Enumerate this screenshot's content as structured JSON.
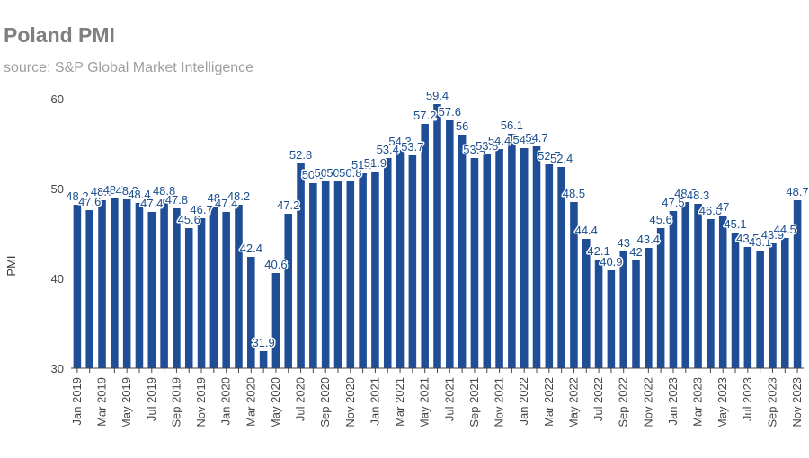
{
  "chart_data": {
    "type": "bar",
    "title": "Poland PMI",
    "subtitle": "source: S&P Global Market Intelligence",
    "ylabel": "PMI",
    "xlabel": "",
    "ylim": [
      30,
      60
    ],
    "yticks": [
      30,
      40,
      50,
      60
    ],
    "grid": false,
    "legend": "none",
    "bar_color": "#1f4e96",
    "label_color": "#1a4e8f",
    "categories": [
      "Jan 2019",
      "Feb 2019",
      "Mar 2019",
      "Apr 2019",
      "May 2019",
      "Jun 2019",
      "Jul 2019",
      "Aug 2019",
      "Sep 2019",
      "Oct 2019",
      "Nov 2019",
      "Dec 2019",
      "Jan 2020",
      "Feb 2020",
      "Mar 2020",
      "Apr 2020",
      "May 2020",
      "Jun 2020",
      "Jul 2020",
      "Aug 2020",
      "Sep 2020",
      "Oct 2020",
      "Nov 2020",
      "Dec 2020",
      "Jan 2021",
      "Feb 2021",
      "Mar 2021",
      "Apr 2021",
      "May 2021",
      "Jun 2021",
      "Jul 2021",
      "Aug 2021",
      "Sep 2021",
      "Oct 2021",
      "Nov 2021",
      "Dec 2021",
      "Jan 2022",
      "Feb 2022",
      "Mar 2022",
      "Apr 2022",
      "May 2022",
      "Jun 2022",
      "Jul 2022",
      "Aug 2022",
      "Sep 2022",
      "Oct 2022",
      "Nov 2022",
      "Dec 2022",
      "Jan 2023",
      "Feb 2023",
      "Mar 2023",
      "Apr 2023",
      "May 2023",
      "Jun 2023",
      "Jul 2023",
      "Aug 2023",
      "Sep 2023",
      "Oct 2023",
      "Nov 2023"
    ],
    "xtick_labels": [
      "Jan 2019",
      "Mar 2019",
      "May 2019",
      "Jul 2019",
      "Sep 2019",
      "Nov 2019",
      "Jan 2020",
      "Mar 2020",
      "May 2020",
      "Jul 2020",
      "Sep 2020",
      "Nov 2020",
      "Jan 2021",
      "Mar 2021",
      "May 2021",
      "Jul 2021",
      "Sep 2021",
      "Nov 2021",
      "Jan 2022",
      "Mar 2022",
      "May 2022",
      "Jul 2022",
      "Sep 2022",
      "Nov 2022",
      "Jan 2023",
      "Mar 2023",
      "May 2023",
      "Jul 2023",
      "Sep 2023",
      "Nov 2023"
    ],
    "values": [
      48.2,
      47.6,
      48.7,
      48.9,
      48.8,
      48.4,
      47.4,
      48.8,
      47.8,
      45.6,
      46.7,
      48.0,
      47.4,
      48.2,
      42.4,
      31.9,
      40.6,
      47.2,
      52.8,
      50.6,
      50.8,
      50.8,
      50.8,
      51.7,
      51.9,
      53.4,
      54.3,
      53.7,
      57.2,
      59.4,
      57.6,
      56.0,
      53.4,
      53.8,
      54.4,
      56.1,
      54.5,
      54.7,
      52.7,
      52.4,
      48.5,
      44.4,
      42.1,
      40.9,
      43.0,
      42.0,
      43.4,
      45.6,
      47.5,
      48.5,
      48.3,
      46.6,
      47.0,
      45.1,
      43.5,
      43.1,
      43.9,
      44.5,
      48.7
    ],
    "data_labels": [
      "48.2",
      "47.6",
      "48.7",
      "48.9",
      "48.8",
      "48.4",
      "47.4",
      "48.8",
      "47.8",
      "45.6",
      "46.7",
      "48",
      "47.4",
      "48.2",
      "42.4",
      "31.9",
      "40.6",
      "47.2",
      "52.8",
      "50.6",
      "50.8",
      "50.8",
      "50.8",
      "51.7",
      "51.9",
      "53.4",
      "54.3",
      "53.7",
      "57.2",
      "59.4",
      "57.6",
      "56",
      "53.4",
      "53.8",
      "54.4",
      "56.1",
      "54.5",
      "54.7",
      "52.7",
      "52.4",
      "48.5",
      "44.4",
      "42.1",
      "40.9",
      "43",
      "42",
      "43.4",
      "45.6",
      "47.5",
      "48.5",
      "48.3",
      "46.6",
      "47",
      "45.1",
      "43.5",
      "43.1",
      "43.9",
      "44.5",
      "48.7"
    ]
  }
}
